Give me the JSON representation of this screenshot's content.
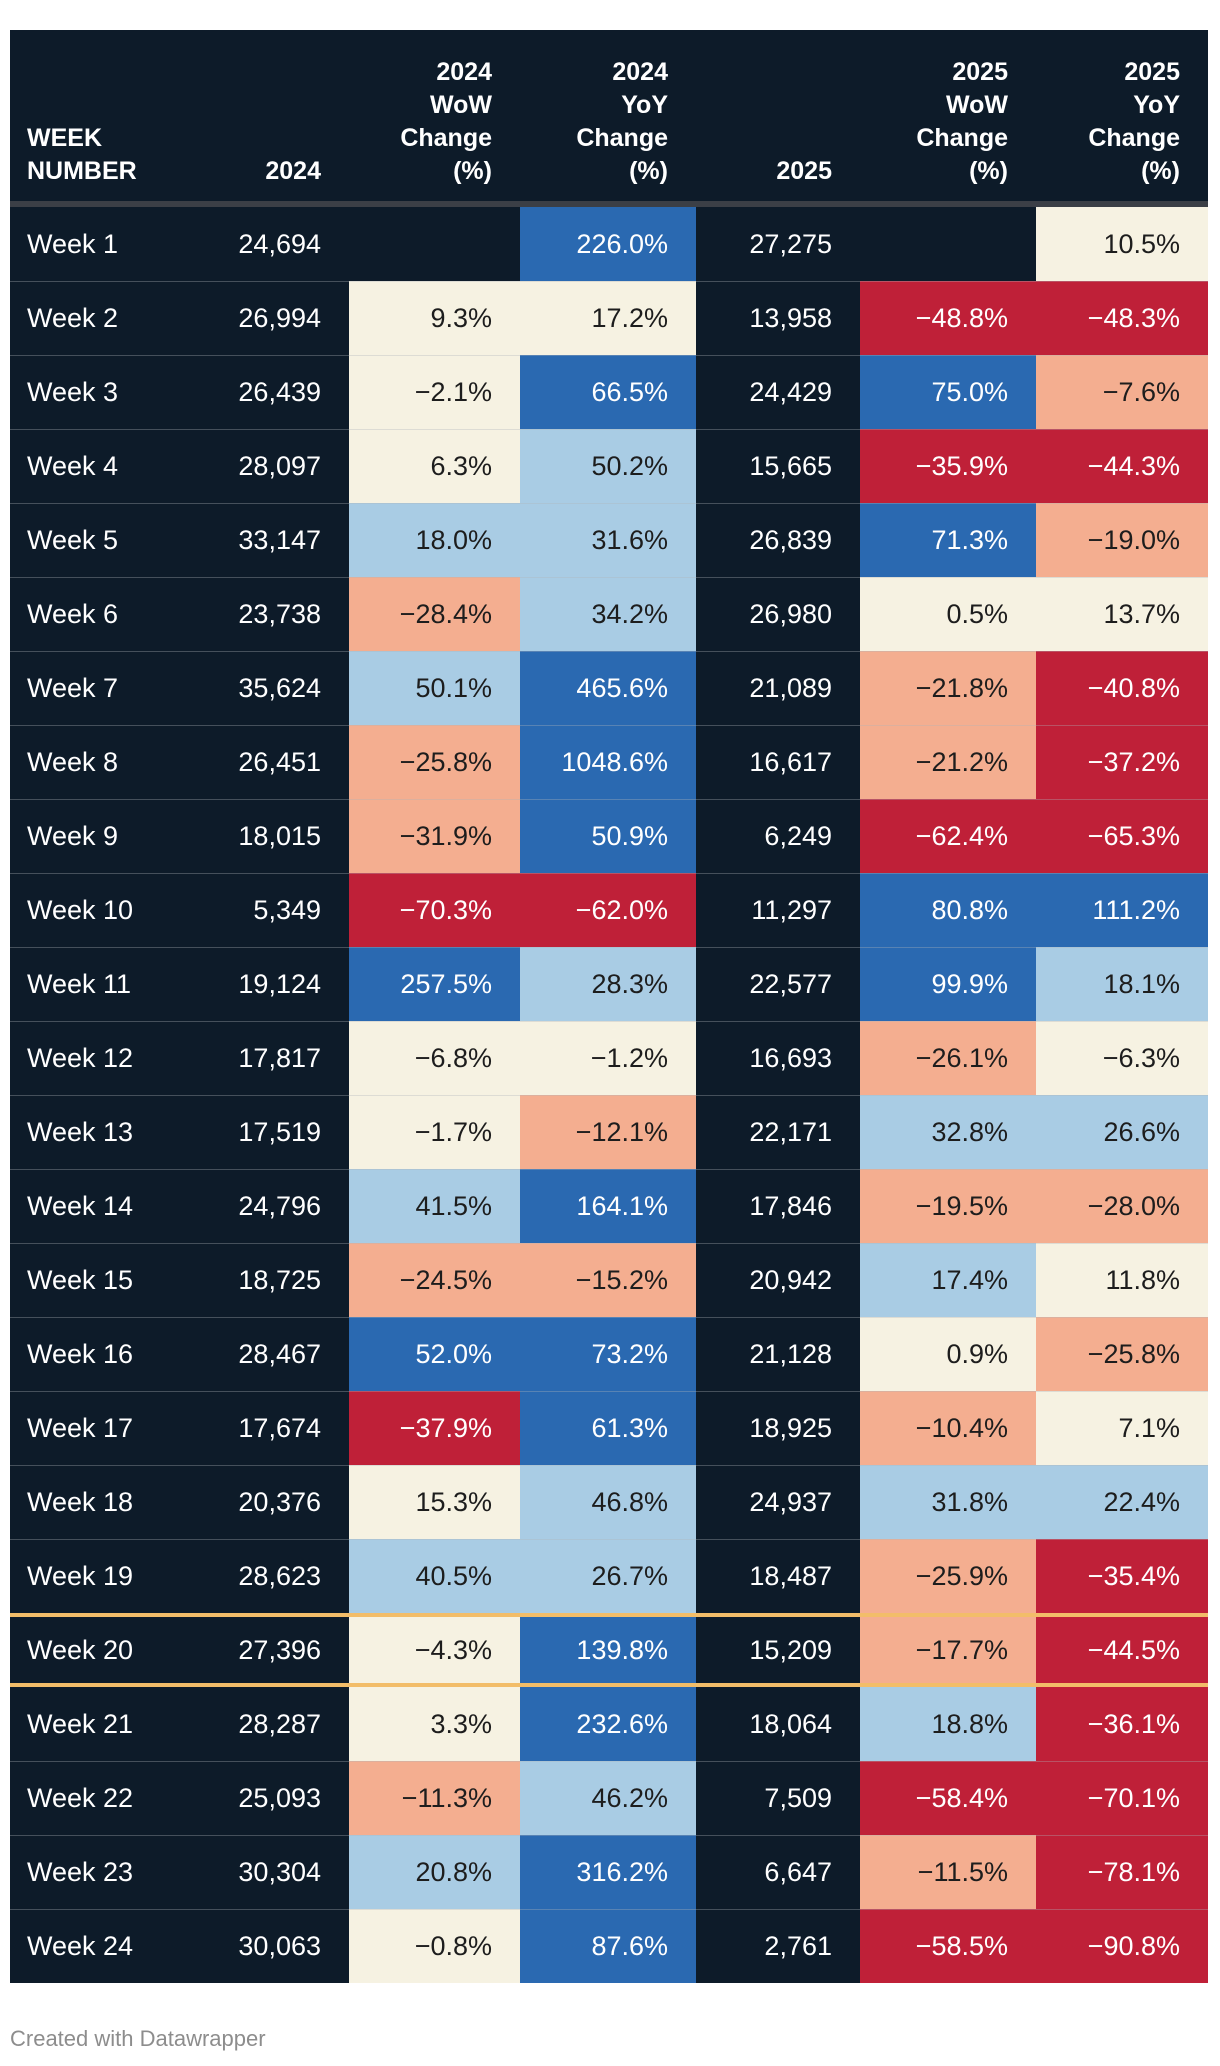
{
  "chart_data": {
    "type": "table",
    "title": "",
    "columns": [
      {
        "id": "week-number",
        "label_lines": [
          "WEEK",
          "NUMBER"
        ],
        "field": "week",
        "align": "left"
      },
      {
        "id": "2024",
        "label_lines": [
          "2024"
        ],
        "field": "y2024",
        "align": "right"
      },
      {
        "id": "2024-wow-change",
        "label_lines": [
          "2024",
          "WoW",
          "Change",
          "(%)"
        ],
        "field": "wow24",
        "color_field": "wow24_c",
        "align": "right"
      },
      {
        "id": "2024-yoy-change",
        "label_lines": [
          "2024",
          "YoY",
          "Change",
          "(%)"
        ],
        "field": "yoy24",
        "color_field": "yoy24_c",
        "align": "right"
      },
      {
        "id": "2025",
        "label_lines": [
          "2025"
        ],
        "field": "y2025",
        "align": "right"
      },
      {
        "id": "2025-wow-change",
        "label_lines": [
          "2025",
          "WoW",
          "Change",
          "(%)"
        ],
        "field": "wow25",
        "color_field": "wow25_c",
        "align": "right"
      },
      {
        "id": "2025-yoy-change",
        "label_lines": [
          "2025",
          "YoY",
          "Change",
          "(%)"
        ],
        "field": "yoy25",
        "color_field": "yoy25_c",
        "align": "right"
      }
    ],
    "rows": [
      {
        "week": "Week 1",
        "y2024": "24,694",
        "wow24": "",
        "wow24_c": "none",
        "yoy24": "226.0%",
        "yoy24_c": "blue",
        "y2025": "27,275",
        "wow25": "",
        "wow25_c": "none",
        "yoy25": "10.5%",
        "yoy25_c": "cream"
      },
      {
        "week": "Week 2",
        "y2024": "26,994",
        "wow24": "9.3%",
        "wow24_c": "cream",
        "yoy24": "17.2%",
        "yoy24_c": "cream",
        "y2025": "13,958",
        "wow25": "−48.8%",
        "wow25_c": "red",
        "yoy25": "−48.3%",
        "yoy25_c": "red"
      },
      {
        "week": "Week 3",
        "y2024": "26,439",
        "wow24": "−2.1%",
        "wow24_c": "cream",
        "yoy24": "66.5%",
        "yoy24_c": "blue",
        "y2025": "24,429",
        "wow25": "75.0%",
        "wow25_c": "blue",
        "yoy25": "−7.6%",
        "yoy25_c": "salmon"
      },
      {
        "week": "Week 4",
        "y2024": "28,097",
        "wow24": "6.3%",
        "wow24_c": "cream",
        "yoy24": "50.2%",
        "yoy24_c": "lightblue",
        "y2025": "15,665",
        "wow25": "−35.9%",
        "wow25_c": "red",
        "yoy25": "−44.3%",
        "yoy25_c": "red"
      },
      {
        "week": "Week 5",
        "y2024": "33,147",
        "wow24": "18.0%",
        "wow24_c": "lightblue",
        "yoy24": "31.6%",
        "yoy24_c": "lightblue",
        "y2025": "26,839",
        "wow25": "71.3%",
        "wow25_c": "blue",
        "yoy25": "−19.0%",
        "yoy25_c": "salmon"
      },
      {
        "week": "Week 6",
        "y2024": "23,738",
        "wow24": "−28.4%",
        "wow24_c": "salmon",
        "yoy24": "34.2%",
        "yoy24_c": "lightblue",
        "y2025": "26,980",
        "wow25": "0.5%",
        "wow25_c": "cream",
        "yoy25": "13.7%",
        "yoy25_c": "cream"
      },
      {
        "week": "Week 7",
        "y2024": "35,624",
        "wow24": "50.1%",
        "wow24_c": "lightblue",
        "yoy24": "465.6%",
        "yoy24_c": "blue",
        "y2025": "21,089",
        "wow25": "−21.8%",
        "wow25_c": "salmon",
        "yoy25": "−40.8%",
        "yoy25_c": "red"
      },
      {
        "week": "Week 8",
        "y2024": "26,451",
        "wow24": "−25.8%",
        "wow24_c": "salmon",
        "yoy24": "1048.6%",
        "yoy24_c": "blue",
        "y2025": "16,617",
        "wow25": "−21.2%",
        "wow25_c": "salmon",
        "yoy25": "−37.2%",
        "yoy25_c": "red"
      },
      {
        "week": "Week 9",
        "y2024": "18,015",
        "wow24": "−31.9%",
        "wow24_c": "salmon",
        "yoy24": "50.9%",
        "yoy24_c": "blue",
        "y2025": "6,249",
        "wow25": "−62.4%",
        "wow25_c": "red",
        "yoy25": "−65.3%",
        "yoy25_c": "red"
      },
      {
        "week": "Week 10",
        "y2024": "5,349",
        "wow24": "−70.3%",
        "wow24_c": "red",
        "yoy24": "−62.0%",
        "yoy24_c": "red",
        "y2025": "11,297",
        "wow25": "80.8%",
        "wow25_c": "blue",
        "yoy25": "111.2%",
        "yoy25_c": "blue"
      },
      {
        "week": "Week 11",
        "y2024": "19,124",
        "wow24": "257.5%",
        "wow24_c": "blue",
        "yoy24": "28.3%",
        "yoy24_c": "lightblue",
        "y2025": "22,577",
        "wow25": "99.9%",
        "wow25_c": "blue",
        "yoy25": "18.1%",
        "yoy25_c": "lightblue"
      },
      {
        "week": "Week 12",
        "y2024": "17,817",
        "wow24": "−6.8%",
        "wow24_c": "cream",
        "yoy24": "−1.2%",
        "yoy24_c": "cream",
        "y2025": "16,693",
        "wow25": "−26.1%",
        "wow25_c": "salmon",
        "yoy25": "−6.3%",
        "yoy25_c": "cream"
      },
      {
        "week": "Week 13",
        "y2024": "17,519",
        "wow24": "−1.7%",
        "wow24_c": "cream",
        "yoy24": "−12.1%",
        "yoy24_c": "salmon",
        "y2025": "22,171",
        "wow25": "32.8%",
        "wow25_c": "lightblue",
        "yoy25": "26.6%",
        "yoy25_c": "lightblue"
      },
      {
        "week": "Week 14",
        "y2024": "24,796",
        "wow24": "41.5%",
        "wow24_c": "lightblue",
        "yoy24": "164.1%",
        "yoy24_c": "blue",
        "y2025": "17,846",
        "wow25": "−19.5%",
        "wow25_c": "salmon",
        "yoy25": "−28.0%",
        "yoy25_c": "salmon"
      },
      {
        "week": "Week 15",
        "y2024": "18,725",
        "wow24": "−24.5%",
        "wow24_c": "salmon",
        "yoy24": "−15.2%",
        "yoy24_c": "salmon",
        "y2025": "20,942",
        "wow25": "17.4%",
        "wow25_c": "lightblue",
        "yoy25": "11.8%",
        "yoy25_c": "cream"
      },
      {
        "week": "Week 16",
        "y2024": "28,467",
        "wow24": "52.0%",
        "wow24_c": "blue",
        "yoy24": "73.2%",
        "yoy24_c": "blue",
        "y2025": "21,128",
        "wow25": "0.9%",
        "wow25_c": "cream",
        "yoy25": "−25.8%",
        "yoy25_c": "salmon"
      },
      {
        "week": "Week 17",
        "y2024": "17,674",
        "wow24": "−37.9%",
        "wow24_c": "red",
        "yoy24": "61.3%",
        "yoy24_c": "blue",
        "y2025": "18,925",
        "wow25": "−10.4%",
        "wow25_c": "salmon",
        "yoy25": "7.1%",
        "yoy25_c": "cream"
      },
      {
        "week": "Week 18",
        "y2024": "20,376",
        "wow24": "15.3%",
        "wow24_c": "cream",
        "yoy24": "46.8%",
        "yoy24_c": "lightblue",
        "y2025": "24,937",
        "wow25": "31.8%",
        "wow25_c": "lightblue",
        "yoy25": "22.4%",
        "yoy25_c": "lightblue"
      },
      {
        "week": "Week 19",
        "y2024": "28,623",
        "wow24": "40.5%",
        "wow24_c": "lightblue",
        "yoy24": "26.7%",
        "yoy24_c": "lightblue",
        "y2025": "18,487",
        "wow25": "−25.9%",
        "wow25_c": "salmon",
        "yoy25": "−35.4%",
        "yoy25_c": "red"
      },
      {
        "week": "Week 20",
        "y2024": "27,396",
        "wow24": "−4.3%",
        "wow24_c": "cream",
        "yoy24": "139.8%",
        "yoy24_c": "blue",
        "y2025": "15,209",
        "wow25": "−17.7%",
        "wow25_c": "salmon",
        "yoy25": "−44.5%",
        "yoy25_c": "red",
        "highlighted": true
      },
      {
        "week": "Week 21",
        "y2024": "28,287",
        "wow24": "3.3%",
        "wow24_c": "cream",
        "yoy24": "232.6%",
        "yoy24_c": "blue",
        "y2025": "18,064",
        "wow25": "18.8%",
        "wow25_c": "lightblue",
        "yoy25": "−36.1%",
        "yoy25_c": "red"
      },
      {
        "week": "Week 22",
        "y2024": "25,093",
        "wow24": "−11.3%",
        "wow24_c": "salmon",
        "yoy24": "46.2%",
        "yoy24_c": "lightblue",
        "y2025": "7,509",
        "wow25": "−58.4%",
        "wow25_c": "red",
        "yoy25": "−70.1%",
        "yoy25_c": "red"
      },
      {
        "week": "Week 23",
        "y2024": "30,304",
        "wow24": "20.8%",
        "wow24_c": "lightblue",
        "yoy24": "316.2%",
        "yoy24_c": "blue",
        "y2025": "6,647",
        "wow25": "−11.5%",
        "wow25_c": "salmon",
        "yoy25": "−78.1%",
        "yoy25_c": "red"
      },
      {
        "week": "Week 24",
        "y2024": "30,063",
        "wow24": "−0.8%",
        "wow24_c": "cream",
        "yoy24": "87.6%",
        "yoy24_c": "blue",
        "y2025": "2,761",
        "wow25": "−58.5%",
        "wow25_c": "red",
        "yoy25": "−90.8%",
        "yoy25_c": "red"
      }
    ],
    "highlighted_week": "Week 20",
    "legend_position": "none",
    "grid": "row-dividers",
    "colors": {
      "blue": "#2a69b1",
      "lightblue": "#a9cce4",
      "cream": "#f6f2e2",
      "salmon": "#f4ae90",
      "red": "#bf2038",
      "none": "transparent",
      "row_background": "#0d1b29",
      "header_background": "#0d1b29",
      "header_separator": "#3b3f46",
      "highlight_line": "#f2bd69",
      "text_on_dark": "#ffffff",
      "text_on_light": "#1d1d1d",
      "footer_text": "#8d8d8d"
    }
  },
  "footer": {
    "credit": "Created with Datawrapper"
  }
}
